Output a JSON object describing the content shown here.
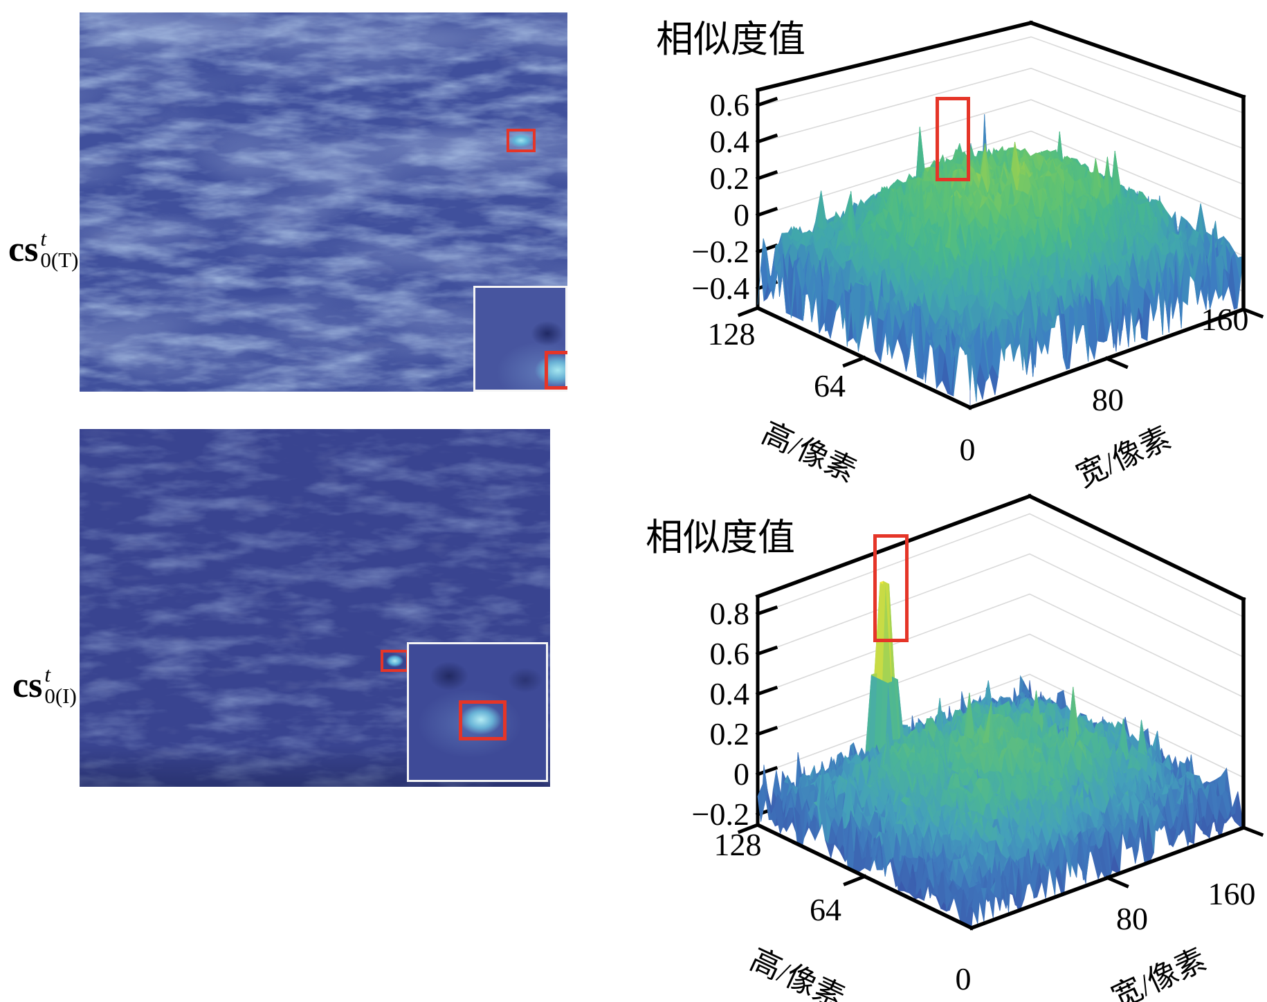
{
  "colors": {
    "annotation_red": "#e53528",
    "inset_border": "#f5f5f5",
    "frame_black": "#000000",
    "gridline_gray": "#d9d9d9",
    "heatmap_base_top": "#40509c",
    "heatmap_base_bottom": "#394490"
  },
  "panels": [
    {
      "id": "cs0T",
      "type": "heatmap",
      "label": {
        "base": "cs",
        "sup": "t",
        "sub": "0(T)"
      },
      "annotations": {
        "target_box": true,
        "zoom_inset": true
      }
    },
    {
      "id": "cs0I",
      "type": "heatmap",
      "label": {
        "base": "cs",
        "sup": "t",
        "sub": "0(I)"
      },
      "annotations": {
        "target_box": true,
        "zoom_inset": true
      }
    }
  ],
  "chart_data": [
    {
      "type": "surface",
      "title": "相似度值",
      "xlabel": "宽/像素",
      "ylabel": "高/像素",
      "zlabel": "相似度值",
      "xlim": [
        0,
        160
      ],
      "ylim": [
        0,
        128
      ],
      "zlim": [
        -0.5,
        0.69
      ],
      "xticks": [
        0,
        80,
        160
      ],
      "xticklabels": [
        "0",
        "80",
        "160"
      ],
      "yticks": [
        128,
        64
      ],
      "yticklabels": [
        "128",
        "64"
      ],
      "zticks": [
        0.6,
        0.4,
        0.2,
        0,
        -0.2,
        -0.4
      ],
      "zticklabels": [
        "0.6",
        "0.4",
        "0.2",
        "0",
        "−0.2",
        "−0.4"
      ],
      "grid": true,
      "highlight_box": {
        "color": "#e53528"
      },
      "summary": {
        "center_mean": 0.25,
        "edge_mean": -0.2,
        "max": 0.45,
        "min": -0.48
      },
      "render": {
        "seed": 1234,
        "nx": 88,
        "ny": 38,
        "base": -0.24,
        "domeAmp": 0.48,
        "domePow": 0.7,
        "smoothAmp": 0.1,
        "roughAmp": 0.095,
        "edgeNeedle": 0.34,
        "needleProb": 0.014,
        "needleAmp": 0.32,
        "clip": [
          -0.48,
          0.5
        ],
        "bump": {
          "u": 0.62,
          "v": 0.85,
          "a": 0.13,
          "s": 0.006
        },
        "stops": [
          [
            -0.48,
            "#3757ac"
          ],
          [
            -0.28,
            "#3d7ec2"
          ],
          [
            -0.08,
            "#41a6ae"
          ],
          [
            0.08,
            "#47b78f"
          ],
          [
            0.22,
            "#5fc273"
          ],
          [
            0.35,
            "#8ccd58"
          ],
          [
            0.5,
            "#cfdc40"
          ]
        ]
      }
    },
    {
      "type": "surface",
      "title": "相似度值",
      "xlabel": "宽/像素",
      "ylabel": "高/像素",
      "zlabel": "相似度值",
      "xlim": [
        0,
        160
      ],
      "ylim": [
        0,
        128
      ],
      "zlim": [
        -0.25,
        0.89
      ],
      "xticks": [
        0,
        80,
        160
      ],
      "xticklabels": [
        "0",
        "80",
        "160"
      ],
      "yticks": [
        128,
        64
      ],
      "yticklabels": [
        "128",
        "64"
      ],
      "zticks": [
        0.8,
        0.6,
        0.4,
        0.2,
        0,
        -0.2
      ],
      "zticklabels": [
        "0.8",
        "0.6",
        "0.4",
        "0.2",
        "0",
        "−0.2"
      ],
      "grid": true,
      "highlight_box": {
        "color": "#e53528"
      },
      "summary": {
        "center_mean": 0.1,
        "edge_mean": -0.12,
        "peak_value": 0.78,
        "min": -0.24
      },
      "render": {
        "seed": 98765,
        "nx": 88,
        "ny": 38,
        "base": -0.12,
        "domeAmp": 0.26,
        "domePow": 0.8,
        "smoothAmp": 0.085,
        "roughAmp": 0.075,
        "edgeNeedle": 0.18,
        "needleProb": 0.012,
        "needleAmp": 0.26,
        "clip": [
          -0.24,
          0.8
        ],
        "spike": {
          "u": 0.42,
          "v": 0.93,
          "z": 0.78
        },
        "stops": [
          [
            -0.24,
            "#3a57ab"
          ],
          [
            -0.1,
            "#3f79bd"
          ],
          [
            0.0,
            "#44a0bb"
          ],
          [
            0.1,
            "#4bb597"
          ],
          [
            0.22,
            "#63c078"
          ],
          [
            0.4,
            "#9bd157"
          ],
          [
            0.62,
            "#dfe03c"
          ],
          [
            0.8,
            "#f4ea3a"
          ]
        ]
      }
    }
  ]
}
